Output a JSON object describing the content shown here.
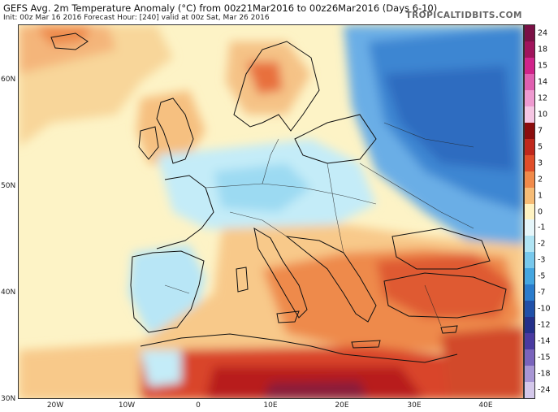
{
  "header": {
    "title": "GEFS Avg. 2m Temperature Anomaly (°C) from 00z21Mar2016 to 00z26Mar2016 (Days 6-10)",
    "init": "Init: 00z Mar 16 2016   Forecast Hour: [240]   valid at 00z Sat, Mar 26 2016",
    "brand": "TROPICALTIDBITS.COM"
  },
  "lat_labels": [
    "60N",
    "50N",
    "40N",
    "30N"
  ],
  "lon_labels": [
    "20W",
    "10W",
    "0",
    "10E",
    "20E",
    "30E",
    "40E"
  ],
  "colorbar": {
    "labels": [
      "24",
      "18",
      "15",
      "14",
      "12",
      "10",
      "7",
      "5",
      "3",
      "2",
      "1",
      "0",
      "-1",
      "-2",
      "-3",
      "-5",
      "-7",
      "-10",
      "-12",
      "-14",
      "-15",
      "-18",
      "-24"
    ],
    "colors": [
      "#7a1045",
      "#a0145c",
      "#d0248a",
      "#e060b0",
      "#ee9ad0",
      "#f5c6e3",
      "#8b0d0d",
      "#c0281c",
      "#e04e2a",
      "#f08a4a",
      "#f6bc76",
      "#fff3c2",
      "#e6f6fa",
      "#b0e4f4",
      "#78c8ec",
      "#44a6e0",
      "#2a7ccc",
      "#2050a8",
      "#24308a",
      "#4a3aa0",
      "#7a64bc",
      "#a896d4",
      "#d4c8ea"
    ]
  },
  "colors": {
    "sea_neutral": "#fdf3c6",
    "warm_light": "#f8c98a",
    "warm_mid": "#ee8a4c",
    "warm_strong": "#d9452a",
    "hot": "#b81e1a",
    "very_hot": "#8a1a3a",
    "cool_light": "#d4f0f8",
    "cool_mid": "#8ed2ee",
    "cool_strong": "#4a9ee0",
    "cold": "#2a6cc6",
    "very_cold": "#2452a8"
  }
}
